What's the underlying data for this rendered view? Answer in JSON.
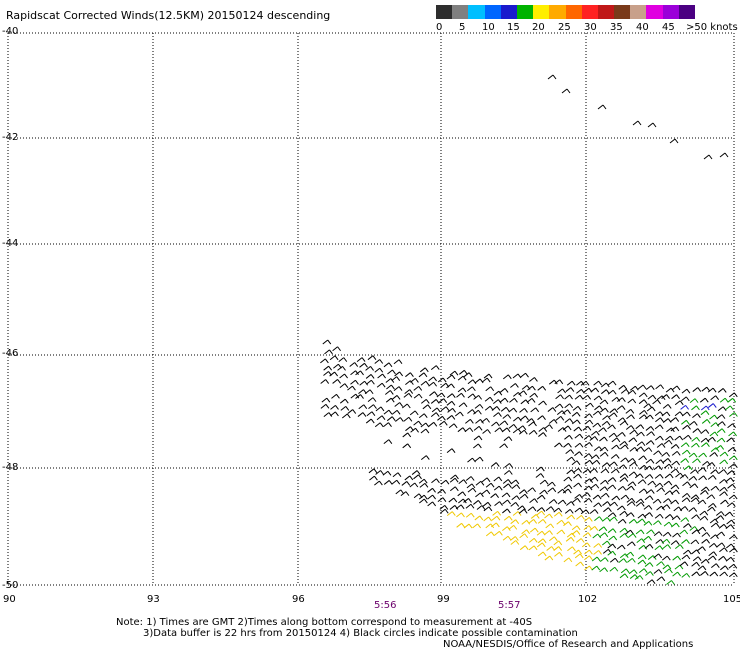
{
  "title": "Rapidscat Corrected Winds(12.5KM) 20150124 descending",
  "legend": {
    "colors": [
      "#2e2e2e",
      "#808080",
      "#00bfff",
      "#0066ff",
      "#1a1acd",
      "#00b300",
      "#ffee00",
      "#ffaa00",
      "#ff6600",
      "#ff2222",
      "#c01818",
      "#7a3a1a",
      "#c8a08a",
      "#e000e0",
      "#9b00d9",
      "#4b0082"
    ],
    "labels": [
      "0",
      "5",
      "10",
      "15",
      "20",
      "25",
      "30",
      "35",
      "40",
      "45",
      ">50 knots"
    ]
  },
  "axes": {
    "lat_labels": [
      "-40",
      "-42",
      "-44",
      "-46",
      "-48",
      "-50"
    ],
    "lon_labels": [
      "90",
      "93",
      "96",
      "99",
      "102",
      "105"
    ]
  },
  "times": [
    "5:56",
    "5:57"
  ],
  "notes": {
    "line1": "Note: 1) Times are GMT 2)Times along bottom correspond to measurement at -40S",
    "line2": "3)Data buffer is 22 hrs from 20150124 4) Black circles indicate possible contamination",
    "line3": "NOAA/NESDIS/Office of Research and Applications"
  },
  "map_colors": {
    "grid": "#000000",
    "wind_dark": "#000000",
    "wind_yellow": "#f0c800",
    "wind_green": "#009a00",
    "wind_blue": "#1a1acd"
  }
}
